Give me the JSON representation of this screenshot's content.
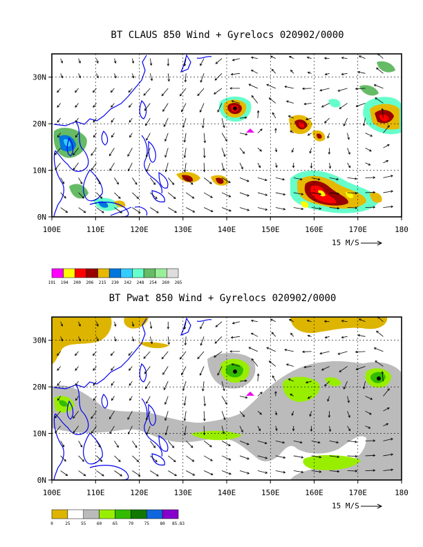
{
  "panels": [
    {
      "id": "claus",
      "title": "BT CLAUS 850 Wind + Gyrelocs 020902/0000",
      "x_ticks": [
        "100E",
        "110E",
        "120E",
        "130E",
        "140E",
        "150E",
        "160E",
        "170E",
        "180"
      ],
      "y_ticks": [
        "30N",
        "20N",
        "10N",
        "0N"
      ],
      "vector_ref_label": "15 M/S",
      "colorbar": {
        "labels": [
          "191",
          "194",
          "200",
          "206",
          "215",
          "230",
          "242",
          "248",
          "254",
          "260",
          "265"
        ],
        "colors": [
          "#ff00ff",
          "#ffff00",
          "#ff0000",
          "#990000",
          "#e6b800",
          "#0077dd",
          "#33ccff",
          "#66ffcc",
          "#66bb66",
          "#99ee99",
          "#dddddd"
        ]
      }
    },
    {
      "id": "pwat",
      "title": "BT Pwat 850 Wind + Gyrelocs 020902/0000",
      "x_ticks": [
        "100E",
        "110E",
        "120E",
        "130E",
        "140E",
        "150E",
        "160E",
        "170E",
        "180"
      ],
      "y_ticks": [
        "30N",
        "20N",
        "10N",
        "0N"
      ],
      "vector_ref_label": "15 M/S",
      "colorbar": {
        "labels": [
          "0",
          "25",
          "55",
          "60",
          "65",
          "70",
          "75",
          "80",
          "85.83"
        ],
        "colors": [
          "#ddb400",
          "#ffffff",
          "#bbbbbb",
          "#99ee00",
          "#33bb00",
          "#117700",
          "#1166dd",
          "#8800cc"
        ]
      }
    }
  ],
  "map": {
    "lon_range": [
      100,
      180
    ],
    "lat_range": [
      0,
      35
    ],
    "gyre_marker": {
      "lon": 145,
      "lat": 19
    },
    "colors": {
      "coast": "#0000ee",
      "marker": "#ee00ee",
      "grid": "#000000"
    }
  }
}
